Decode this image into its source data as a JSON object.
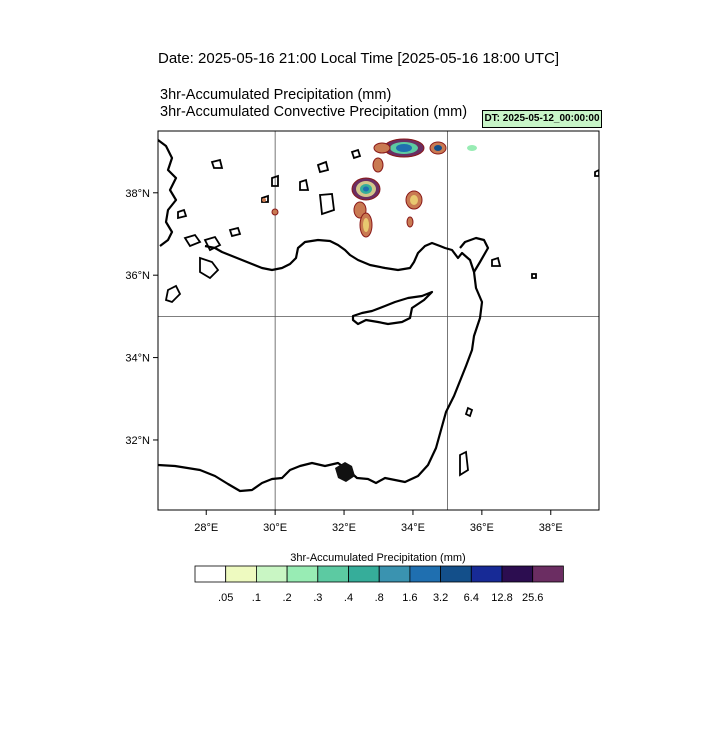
{
  "header": {
    "date_line": "Date: 2025-05-16  21:00 Local Time [2025-05-16  18:00 UTC]",
    "title_line_1": "3hr-Accumulated Precipitation   (mm)",
    "title_line_2": "3hr-Accumulated Convective Precipitation   (mm)",
    "dt_badge": "DT: 2025-05-12_00:00:00"
  },
  "map": {
    "lon_range": [
      26.6,
      39.4
    ],
    "lat_range": [
      30.3,
      39.5
    ],
    "lon_ticks": [
      {
        "value": 28,
        "label": "28°E"
      },
      {
        "value": 30,
        "label": "30°E"
      },
      {
        "value": 32,
        "label": "32°E"
      },
      {
        "value": 34,
        "label": "34°E"
      },
      {
        "value": 36,
        "label": "36°E"
      },
      {
        "value": 38,
        "label": "38°E"
      }
    ],
    "lat_ticks": [
      {
        "value": 38,
        "label": "38°N"
      },
      {
        "value": 36,
        "label": "36°N"
      },
      {
        "value": 34,
        "label": "34°N"
      },
      {
        "value": 32,
        "label": "32°N"
      }
    ],
    "grid_lons": [
      30,
      35
    ],
    "grid_lats": [
      35
    ]
  },
  "colorbar": {
    "title": "3hr-Accumulated Precipitation   (mm)",
    "colors": [
      "#ffffff",
      "#eefac0",
      "#c9f6c4",
      "#98ecb4",
      "#5ccaa2",
      "#36ad9a",
      "#3a93b0",
      "#1f6fb0",
      "#134f8a",
      "#172a96",
      "#2c0d50",
      "#6b2d62"
    ],
    "labels": [
      ".05",
      ".1",
      ".2",
      ".3",
      ".4",
      ".8",
      "1.6",
      "3.2",
      "6.4",
      "12.8",
      "25.6"
    ]
  }
}
